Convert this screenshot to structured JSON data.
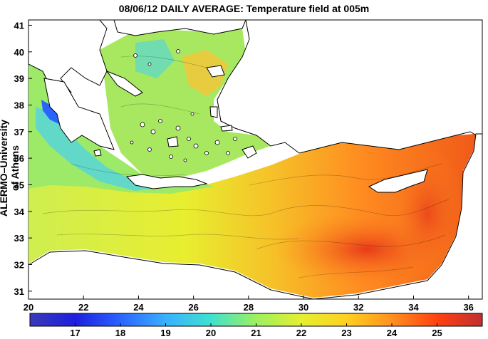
{
  "map": {
    "title": "08/06/12 DAILY AVERAGE: Temperature field at 005m",
    "ylabel": "ALERMO–University of Athens",
    "lon_ticks": [
      "20",
      "22",
      "24",
      "26",
      "28",
      "30",
      "32",
      "34",
      "36"
    ],
    "lat_ticks": [
      "31",
      "32",
      "33",
      "34",
      "35",
      "36",
      "37",
      "38",
      "39",
      "40",
      "41"
    ],
    "lon_range": [
      20,
      36.5
    ],
    "lat_range": [
      30.7,
      41.2
    ]
  },
  "colorbar": {
    "range": [
      16,
      26
    ],
    "ticks": [
      "17",
      "18",
      "19",
      "20",
      "21",
      "22",
      "23",
      "24",
      "25"
    ],
    "colors": [
      "#3a3ab8",
      "#1e1edd",
      "#2a64ff",
      "#3ab0ff",
      "#40e0d0",
      "#9cf060",
      "#e4f030",
      "#ffd020",
      "#ff9020",
      "#ff4010",
      "#c03030"
    ]
  }
}
